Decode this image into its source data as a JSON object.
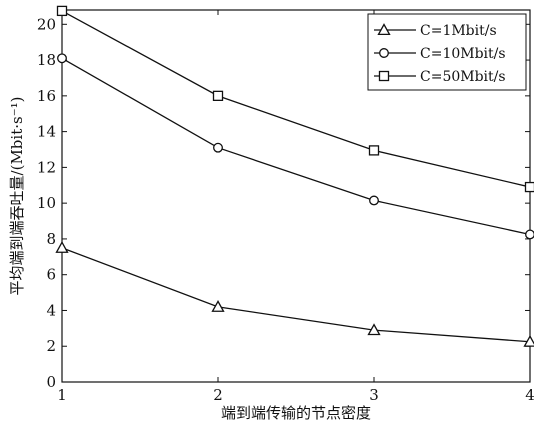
{
  "chart_data": {
    "type": "line",
    "xlabel": "端到端传输的节点密度",
    "ylabel": "平均端到端吞吐量/(Mbit·s⁻¹)",
    "x": [
      1,
      2,
      3,
      4
    ],
    "xlim": [
      1,
      4
    ],
    "ylim": [
      0,
      20.8
    ],
    "xticks": [
      1,
      2,
      3,
      4
    ],
    "yticks": [
      0,
      2,
      4,
      6,
      8,
      10,
      12,
      14,
      16,
      18,
      20
    ],
    "grid": false,
    "legend_position": "top-right",
    "series": [
      {
        "name": "C=1Mbit/s",
        "marker": "triangle",
        "values": [
          7.5,
          4.2,
          2.9,
          2.25
        ]
      },
      {
        "name": "C=10Mbit/s",
        "marker": "circle",
        "values": [
          18.1,
          13.1,
          10.15,
          8.25
        ]
      },
      {
        "name": "C=50Mbit/s",
        "marker": "square",
        "values": [
          20.75,
          16.0,
          12.95,
          10.9
        ]
      }
    ],
    "colors": {
      "line": "#111111",
      "background": "#ffffff"
    }
  }
}
